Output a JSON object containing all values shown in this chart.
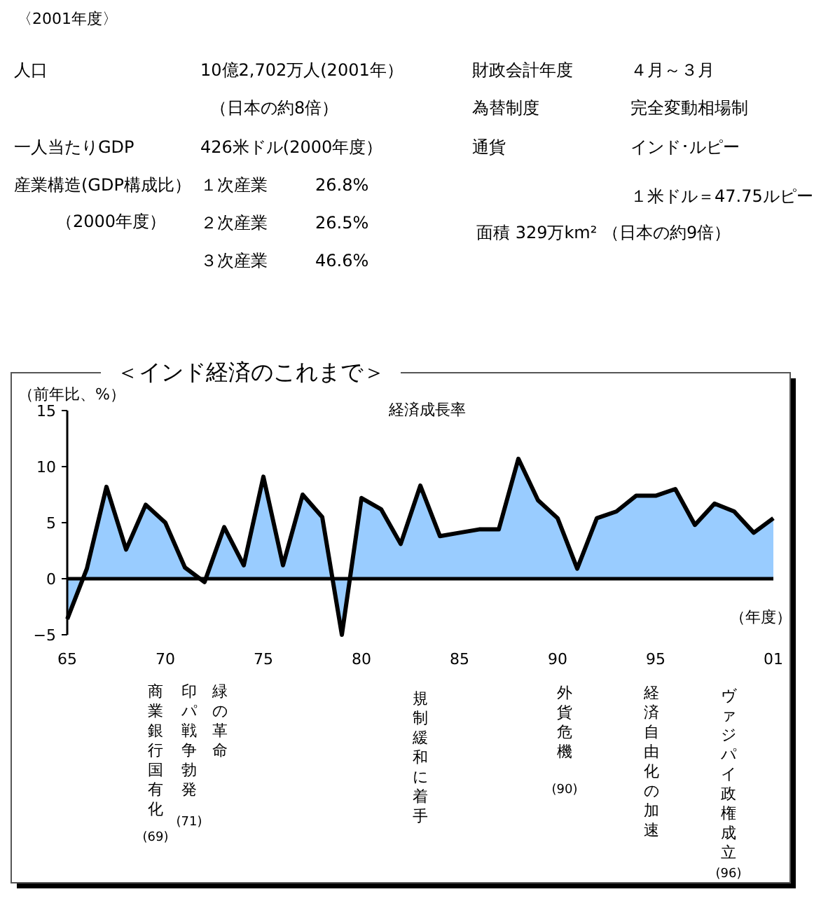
{
  "chart_data": [
    {
      "type": "other",
      "title": "〈2001年度〉",
      "annotations": [
        "人口",
        "10億2,702万人(2001年）",
        "（日本の約8倍）",
        "一人当たりGDP",
        "426米ドル(2000年度）",
        "産業構造(GDP構成比）",
        "（2000年度）",
        "１次産業",
        "26.8%",
        "２次産業",
        "26.5%",
        "３次産業",
        "46.6%",
        "財政会計年度",
        "４月～３月",
        "為替制度",
        "完全変動相場制",
        "通貨",
        "インド･ルピー",
        "１米ドル＝47.75ルピー",
        "面積 329万km² （日本の約9倍）"
      ]
    },
    {
      "type": "area",
      "title": "＜インド経済のこれまで＞",
      "ylabel": "（前年比、%）",
      "xlabel": "（年度）",
      "x": [
        1965,
        1966,
        1967,
        1968,
        1969,
        1970,
        1971,
        1972,
        1973,
        1974,
        1975,
        1976,
        1977,
        1978,
        1979,
        1980,
        1981,
        1982,
        1983,
        1984,
        1985,
        1986,
        1987,
        1988,
        1989,
        1990,
        1991,
        1992,
        1993,
        1994,
        1995,
        1996,
        1997,
        1998,
        1999,
        2000,
        2001
      ],
      "series": [
        {
          "name": "経済成長率",
          "color": "#99ccff",
          "values": [
            -3.6,
            0.9,
            8.2,
            2.6,
            6.6,
            5.0,
            1.0,
            -0.3,
            4.6,
            1.2,
            9.1,
            1.2,
            7.5,
            5.5,
            -5.0,
            7.2,
            6.2,
            3.1,
            8.3,
            3.8,
            4.1,
            4.4,
            4.4,
            10.7,
            7.0,
            5.4,
            0.9,
            5.4,
            6.0,
            7.4,
            7.4,
            8.0,
            4.8,
            6.7,
            6.0,
            4.1,
            5.4
          ]
        }
      ],
      "xlim": [
        1965,
        2001
      ],
      "xticks": [
        {
          "value": 1965,
          "label": "65"
        },
        {
          "value": 1970,
          "label": "70"
        },
        {
          "value": 1975,
          "label": "75"
        },
        {
          "value": 1980,
          "label": "80"
        },
        {
          "value": 1985,
          "label": "85"
        },
        {
          "value": 1990,
          "label": "90"
        },
        {
          "value": 1995,
          "label": "95"
        },
        {
          "value": 2001,
          "label": "01"
        }
      ],
      "ylim": [
        -5,
        15
      ],
      "yticks": [
        -5,
        0,
        5,
        10,
        15
      ],
      "annotations": [
        "商業銀行国有化",
        "(69)",
        "印パ戦争勃発",
        "(71)",
        "緑の革命",
        "規制緩和に着手",
        "外貨危機",
        "(90)",
        "経済自由化の加速",
        "ヴァジパイ政権成立",
        "(96)"
      ]
    }
  ]
}
